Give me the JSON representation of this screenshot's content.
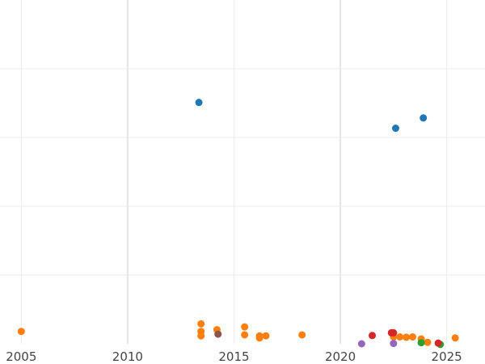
{
  "chart_data": {
    "type": "scatter",
    "title": "",
    "xlabel": "",
    "ylabel": "",
    "xlim": [
      2004.0,
      2026.8
    ],
    "ylim": [
      0,
      100
    ],
    "x_ticks": [
      2005,
      2010,
      2015,
      2020,
      2025
    ],
    "x_tick_labels": [
      "2005",
      "2010",
      "2015",
      "2020",
      "2025"
    ],
    "y_gridlines": [
      20,
      40,
      60,
      80
    ],
    "y_tick_labels_visible": false,
    "grid": true,
    "legend": "none",
    "series": [
      {
        "color": "#1f77b4",
        "points": [
          {
            "x": 2013.35,
            "y": 70.2
          },
          {
            "x": 2022.6,
            "y": 62.7
          },
          {
            "x": 2023.9,
            "y": 65.7
          }
        ]
      },
      {
        "color": "#ff7f0e",
        "points": [
          {
            "x": 2005.0,
            "y": 3.6
          },
          {
            "x": 2013.45,
            "y": 5.8
          },
          {
            "x": 2013.45,
            "y": 3.6
          },
          {
            "x": 2013.45,
            "y": 2.3
          },
          {
            "x": 2014.2,
            "y": 4.1
          },
          {
            "x": 2015.5,
            "y": 4.9
          },
          {
            "x": 2015.5,
            "y": 2.6
          },
          {
            "x": 2016.2,
            "y": 2.3
          },
          {
            "x": 2016.2,
            "y": 1.7
          },
          {
            "x": 2016.5,
            "y": 2.3
          },
          {
            "x": 2018.2,
            "y": 2.6
          },
          {
            "x": 2022.5,
            "y": 2.0
          },
          {
            "x": 2022.8,
            "y": 2.0
          },
          {
            "x": 2023.1,
            "y": 1.9
          },
          {
            "x": 2023.4,
            "y": 2.0
          },
          {
            "x": 2023.8,
            "y": 1.4
          },
          {
            "x": 2024.1,
            "y": 0.4
          },
          {
            "x": 2025.4,
            "y": 1.7
          }
        ]
      },
      {
        "color": "#2ca02c",
        "points": [
          {
            "x": 2023.8,
            "y": 0.3
          },
          {
            "x": 2024.7,
            "y": -0.2
          }
        ]
      },
      {
        "color": "#d62728",
        "points": [
          {
            "x": 2021.5,
            "y": 2.4
          },
          {
            "x": 2022.4,
            "y": 3.2
          },
          {
            "x": 2022.5,
            "y": 3.2
          },
          {
            "x": 2024.6,
            "y": 0.2
          }
        ]
      },
      {
        "color": "#9467bd",
        "points": [
          {
            "x": 2021.0,
            "y": 0.0
          },
          {
            "x": 2022.5,
            "y": 0.1
          }
        ]
      },
      {
        "color": "#8c564b",
        "points": [
          {
            "x": 2014.25,
            "y": 2.8
          }
        ]
      }
    ]
  }
}
